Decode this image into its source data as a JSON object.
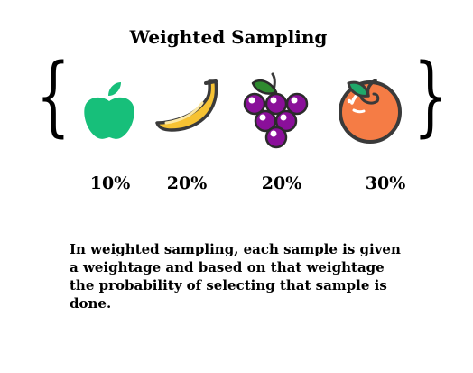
{
  "title": "Weighted Sampling",
  "items": [
    {
      "fruit": "apple-icon",
      "percent": "10%",
      "color": "#17bf7a"
    },
    {
      "fruit": "banana-icon",
      "percent": "20%",
      "color": "#f6c233"
    },
    {
      "fruit": "grapes-icon",
      "percent": "20%",
      "color": "#8a0f9a"
    },
    {
      "fruit": "orange-icon",
      "percent": "30%",
      "color": "#f57c45"
    }
  ],
  "description": "In weighted sampling, each sample is given a weightage and based on that weightage the probability of selecting that sample is done."
}
